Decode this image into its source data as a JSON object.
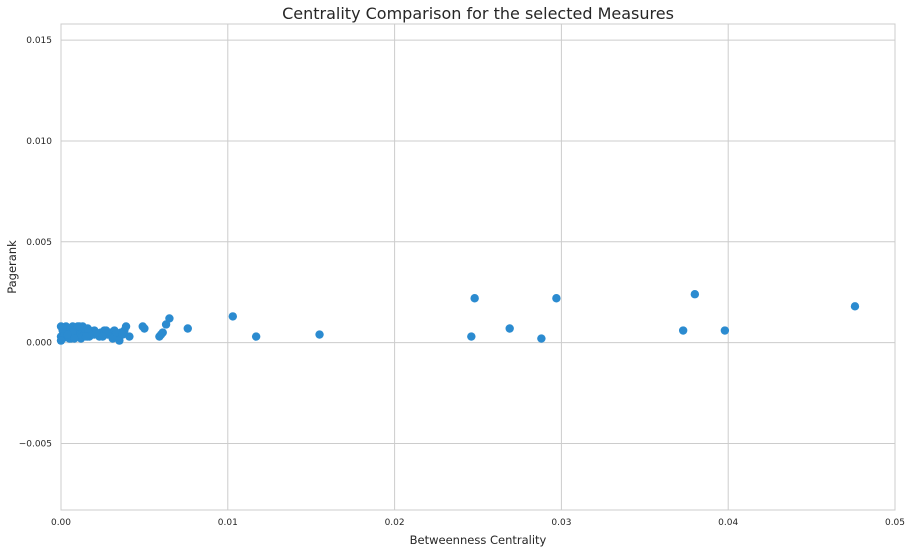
{
  "chart_data": {
    "type": "scatter",
    "title": "Centrality Comparison for the selected Measures",
    "xlabel": "Betweenness Centrality",
    "ylabel": "Pagerank",
    "xlim": [
      0,
      0.05
    ],
    "ylim": [
      -0.0083,
      0.0158
    ],
    "xticks": [
      0.0,
      0.01,
      0.02,
      0.03,
      0.04,
      0.05
    ],
    "xtick_labels": [
      "0.00",
      "0.01",
      "0.02",
      "0.03",
      "0.04",
      "0.05"
    ],
    "yticks": [
      -0.005,
      0.0,
      0.005,
      0.01,
      0.015
    ],
    "ytick_labels": [
      "−0.005",
      "0.000",
      "0.005",
      "0.010",
      "0.015"
    ],
    "grid": true,
    "legend": "none",
    "colors": {
      "marker": "#2b8bd0",
      "grid": "#cccccc",
      "text": "#262626"
    },
    "series": [
      {
        "x": [
          0.0,
          0.0001,
          0.0002,
          0.0003,
          0.0004,
          0.0005,
          0.0006,
          0.0007,
          0.0008,
          0.0009,
          0.001,
          0.0011,
          0.0012,
          0.0013,
          0.0014,
          0.0015,
          0.0016,
          0.0017,
          0.0018,
          0.0019,
          0.002,
          0.0022,
          0.0024,
          0.0026,
          0.0028,
          0.003,
          0.0032,
          0.0034,
          0.0036,
          0.0038,
          0.0001,
          0.0002,
          0.0004,
          0.0006,
          0.0008,
          0.0009,
          0.0012,
          0.0014,
          0.0017,
          0.002,
          0.0003,
          0.0005,
          0.0007,
          0.001,
          0.0013,
          0.0016,
          0.0019,
          0.0023,
          0.0027,
          0.0031,
          0.0,
          0.0,
          0.0001,
          0.0004,
          0.0008,
          0.0011,
          0.0015,
          0.0021,
          0.0025,
          0.0033,
          0.0035,
          0.0037,
          0.0039,
          0.0041,
          0.0049,
          0.005,
          0.0059,
          0.006,
          0.0061,
          0.0063,
          0.0065,
          0.0076,
          0.0103,
          0.0117,
          0.0155,
          0.0246,
          0.0248,
          0.0269,
          0.0288,
          0.0297,
          0.0373,
          0.038,
          0.0398,
          0.0476
        ],
        "y": [
          0.0003,
          0.0006,
          0.0004,
          0.0007,
          0.0005,
          0.0003,
          0.0006,
          0.0008,
          0.0004,
          0.0007,
          0.0005,
          0.0003,
          0.0006,
          0.0008,
          0.0004,
          0.0005,
          0.0003,
          0.0006,
          0.0004,
          0.0005,
          0.0006,
          0.0004,
          0.0005,
          0.0006,
          0.0004,
          0.0005,
          0.0006,
          0.0004,
          0.0005,
          0.0006,
          0.0002,
          0.0005,
          0.0003,
          0.0002,
          0.0006,
          0.0003,
          0.0002,
          0.0007,
          0.0003,
          0.0004,
          0.0008,
          0.0002,
          0.0005,
          0.0008,
          0.0003,
          0.0007,
          0.0004,
          0.0003,
          0.0006,
          0.0002,
          0.0001,
          0.0008,
          0.0007,
          0.0004,
          0.0002,
          0.0008,
          0.0003,
          0.0005,
          0.0003,
          0.0005,
          0.0001,
          0.0004,
          0.0008,
          0.0003,
          0.0008,
          0.0007,
          0.0003,
          0.0004,
          0.0005,
          0.0009,
          0.0012,
          0.0007,
          0.0013,
          0.0003,
          0.0004,
          0.0003,
          0.0022,
          0.0007,
          0.0002,
          0.0022,
          0.0006,
          0.0024,
          0.0006,
          0.0018
        ]
      }
    ]
  }
}
